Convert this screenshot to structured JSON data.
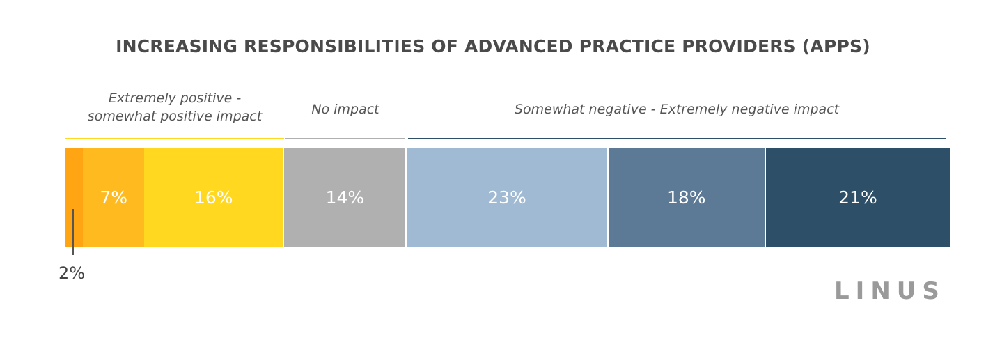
{
  "chart_data": {
    "type": "bar",
    "orientation": "horizontal-stacked",
    "title": "INCREASING RESPONSIBILITIES OF ADVANCED PRACTICE PROVIDERS (APPS)",
    "groups": [
      {
        "label": "Extremely positive -\nsomewhat positive impact",
        "color": "#FFD81F"
      },
      {
        "label": "No impact",
        "color": "#B0B0B0"
      },
      {
        "label": "Somewhat negative - Extremely negative impact",
        "color": "#2D5068"
      }
    ],
    "series": [
      {
        "value": 2,
        "label": "2%",
        "color": "#FFA412",
        "group": 0
      },
      {
        "value": 7,
        "label": "7%",
        "color": "#FFBA1F",
        "group": 0
      },
      {
        "value": 16,
        "label": "16%",
        "color": "#FFD81F",
        "group": 0
      },
      {
        "value": 14,
        "label": "14%",
        "color": "#B0B0B0",
        "group": 1
      },
      {
        "value": 23,
        "label": "23%",
        "color": "#A0BAD3",
        "group": 2
      },
      {
        "value": 18,
        "label": "18%",
        "color": "#5C7996",
        "group": 2
      },
      {
        "value": 21,
        "label": "21%",
        "color": "#2D5068",
        "group": 2
      }
    ]
  },
  "logo_text": "LINUS"
}
